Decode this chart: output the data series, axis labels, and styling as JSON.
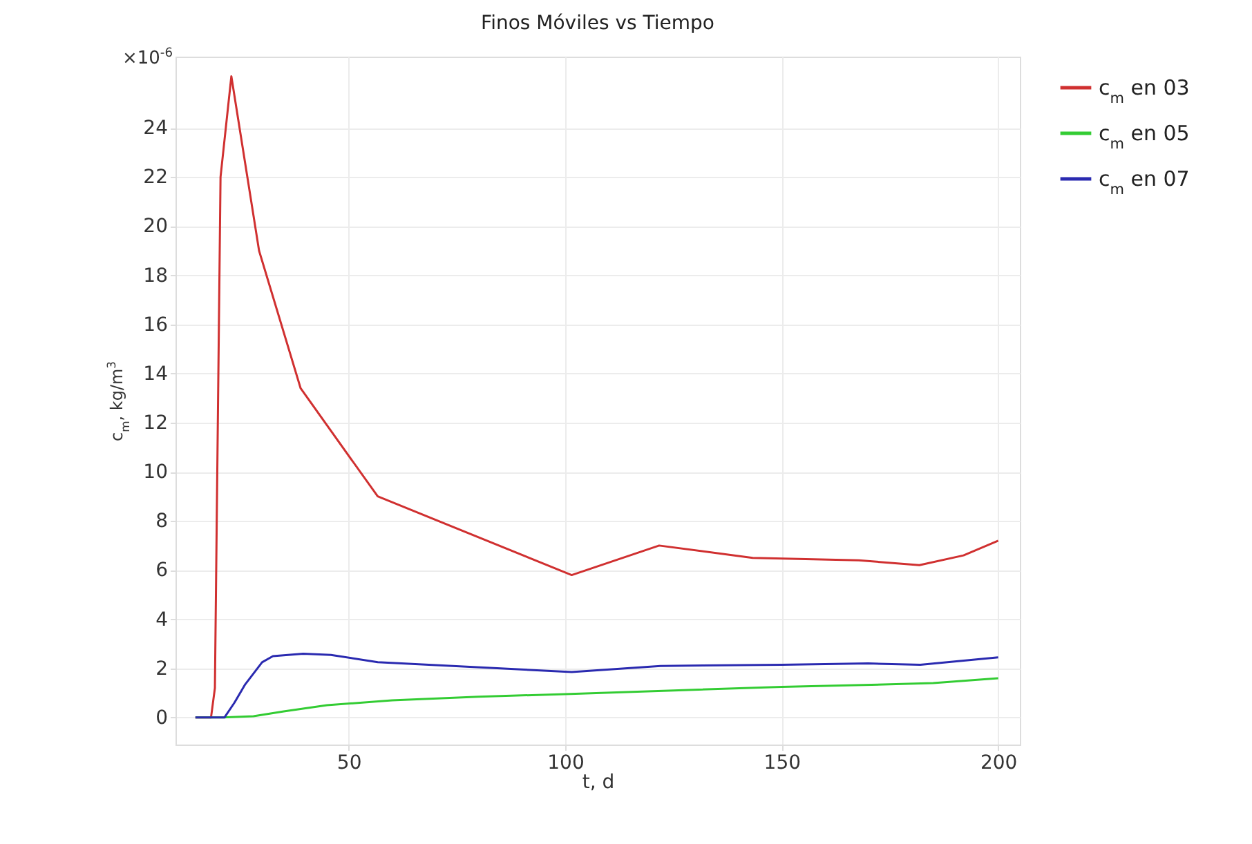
{
  "chart_data": {
    "type": "line",
    "title": "Finos Móviles  vs  Tiempo",
    "xlabel": "t,  d",
    "ylabel": "c$_{m}$,  kg/m$^{3}$",
    "annotations": [
      "×10$^{-6}$"
    ],
    "xlim": [
      10,
      205
    ],
    "xticks": [
      50,
      100,
      150,
      200
    ],
    "ylim": [
      -1.1,
      26.9
    ],
    "yticks": [
      0,
      2,
      4,
      6,
      8,
      10,
      12,
      14,
      16,
      18,
      20,
      22,
      24
    ],
    "grid": true,
    "legend": "right",
    "line_style": "solid",
    "marker": "none",
    "series": [
      {
        "name": "c$_{m}$ en 03",
        "color": "#d03030",
        "x": [
          14.6,
          18.2,
          19.1,
          20.4,
          22.9,
          29.3,
          38.9,
          56.7,
          101.5,
          121.7,
          143.3,
          167.8,
          181.8,
          192,
          200
        ],
        "values": [
          0,
          0,
          1.2,
          22,
          26.1,
          19,
          13.4,
          9,
          5.8,
          7,
          6.5,
          6.4,
          6.2,
          6.6,
          7.2
        ]
      },
      {
        "name": "c$_{m}$ en 05",
        "color": "#33cc33",
        "x": [
          14.6,
          21,
          28,
          35,
          45,
          60,
          80,
          100,
          125,
          150,
          175,
          185,
          200
        ],
        "values": [
          0,
          0,
          0.05,
          0.25,
          0.5,
          0.7,
          0.85,
          0.95,
          1.1,
          1.25,
          1.35,
          1.4,
          1.6
        ]
      },
      {
        "name": "c$_{m}$ en 07",
        "color": "#2a2ab0",
        "x": [
          14.6,
          21.3,
          23.6,
          26.1,
          30,
          32.5,
          39.5,
          45.9,
          56.7,
          101.5,
          122,
          150,
          170,
          182,
          200
        ],
        "values": [
          0,
          0,
          0.6,
          1.35,
          2.25,
          2.5,
          2.6,
          2.55,
          2.25,
          1.85,
          2.1,
          2.15,
          2.2,
          2.15,
          2.45
        ]
      }
    ]
  }
}
